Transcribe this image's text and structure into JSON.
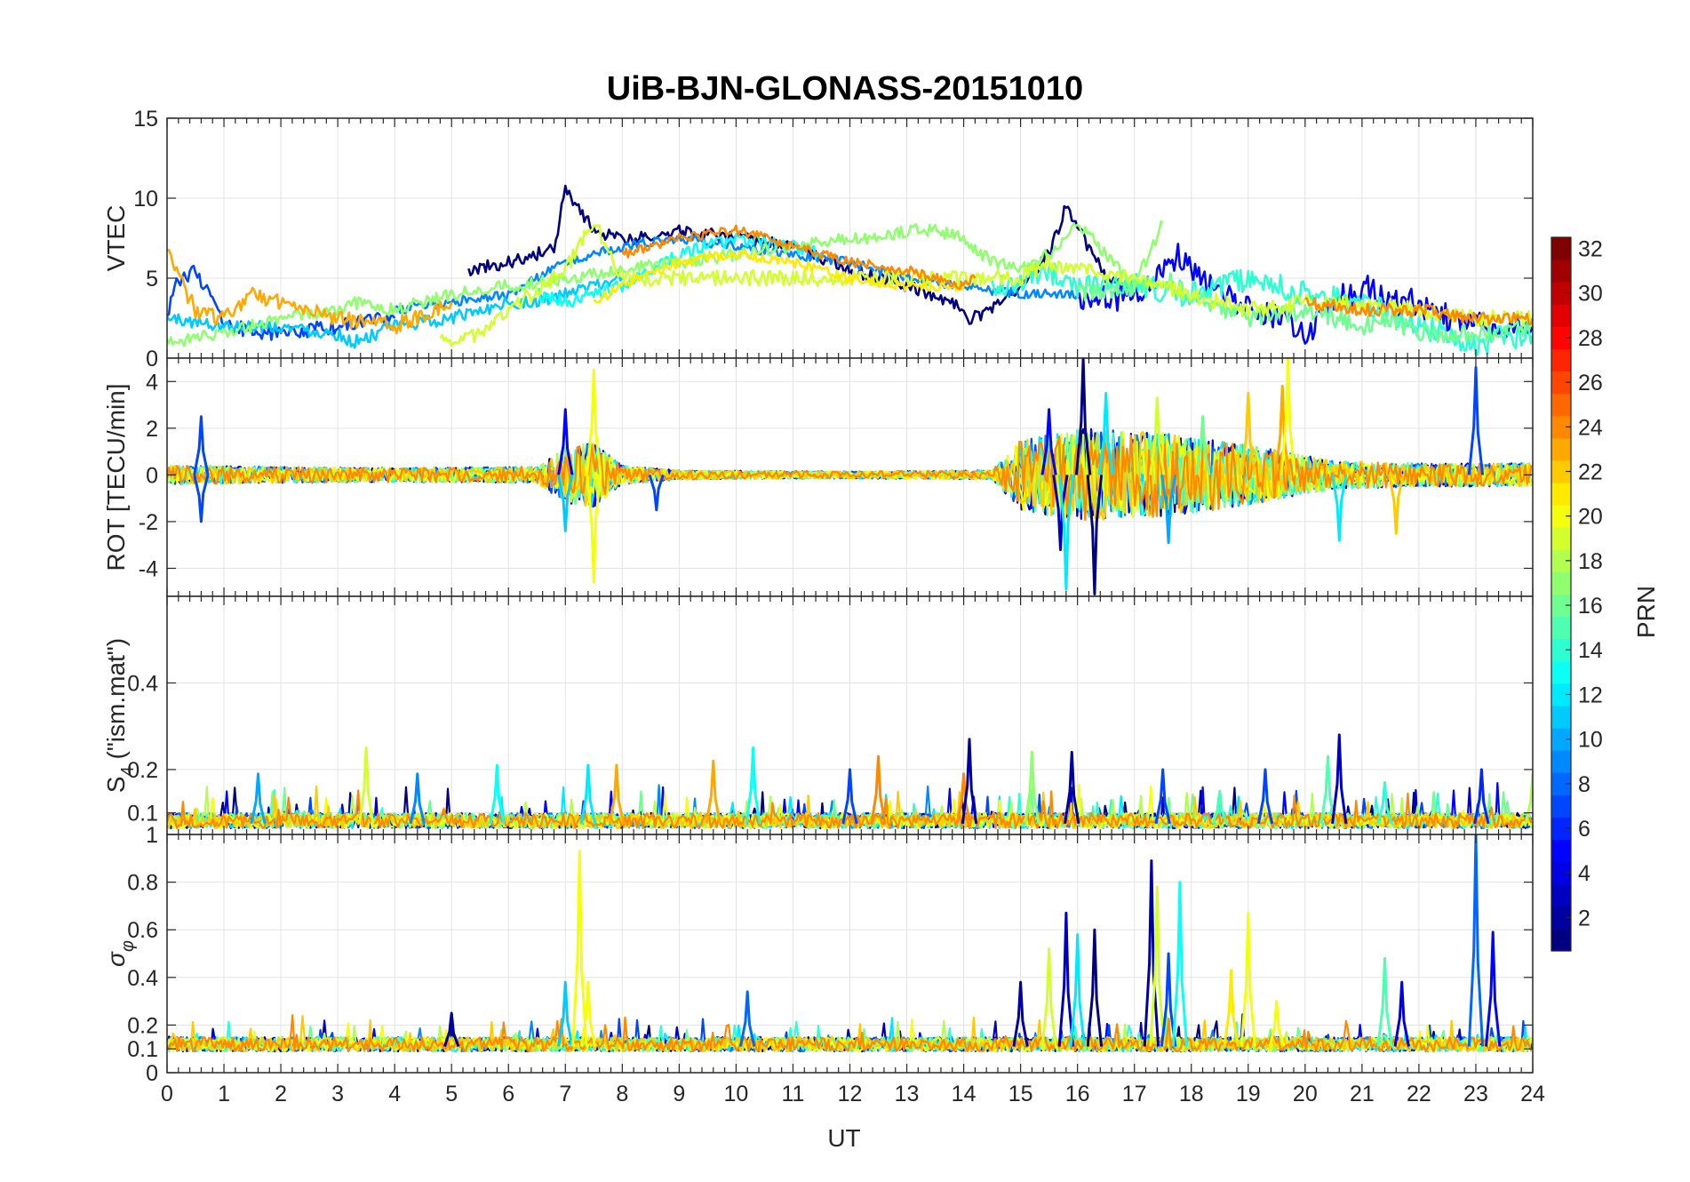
{
  "chart_data": {
    "type": "line",
    "title": "UiB-BJN-GLONASS-20151010",
    "xlabel": "UT",
    "xlim": [
      0,
      24
    ],
    "x_ticks": [
      "0",
      "1",
      "2",
      "3",
      "4",
      "5",
      "6",
      "7",
      "8",
      "9",
      "10",
      "11",
      "12",
      "13",
      "14",
      "15",
      "16",
      "17",
      "18",
      "19",
      "20",
      "21",
      "22",
      "23",
      "24"
    ],
    "grid": true,
    "colorbar": {
      "label": "PRN",
      "colormap": "jet",
      "range": [
        1,
        32
      ],
      "ticks": [
        "2",
        "4",
        "6",
        "8",
        "10",
        "12",
        "14",
        "16",
        "18",
        "20",
        "22",
        "24",
        "26",
        "28",
        "30",
        "32"
      ]
    },
    "panels": [
      {
        "id": "vtec",
        "ylabel": "VTEC",
        "ylim": [
          0,
          15
        ],
        "y_ticks": [
          0,
          5,
          10,
          15
        ],
        "y_tick_labels": [
          "0",
          "5",
          "10",
          "15"
        ],
        "series": [
          {
            "prn": 1,
            "x": [
              5.3,
              6.0,
              6.8,
              7.0,
              7.5,
              8.0,
              8.5,
              9.0,
              10.0,
              11.0,
              12.0,
              13.0,
              13.8,
              14.1,
              14.5,
              15.0,
              15.5,
              15.8,
              16.5,
              17.0
            ],
            "y": [
              5.5,
              6.0,
              6.8,
              10.5,
              8.0,
              7.5,
              7.5,
              8.0,
              7.5,
              7.0,
              5.5,
              4.5,
              3.5,
              2.5,
              3.0,
              4.5,
              6.5,
              9.5,
              5.0,
              4.5
            ],
            "noise": 0.4
          },
          {
            "prn": 5,
            "x": [
              16.0,
              17.0,
              17.8,
              18.5,
              19.0,
              19.5,
              20.0,
              20.5,
              21.0,
              21.5,
              22.0,
              22.5,
              23.0,
              24.0
            ],
            "y": [
              3.5,
              4.0,
              6.5,
              4.0,
              3.0,
              2.5,
              1.5,
              3.5,
              4.5,
              3.5,
              3.5,
              2.5,
              2.0,
              2.0
            ],
            "noise": 0.9
          },
          {
            "prn": 7,
            "x": [
              0.0,
              0.2,
              0.5,
              1.0,
              2.0,
              3.0,
              4.0
            ],
            "y": [
              2.5,
              5.0,
              5.5,
              2.0,
              1.5,
              2.0,
              2.5
            ],
            "noise": 0.5
          },
          {
            "prn": 9,
            "x": [
              4.0,
              5.0,
              6.0,
              7.0,
              8.0,
              9.0,
              10.0,
              11.0,
              12.0,
              13.0,
              14.0,
              15.0,
              16.0
            ],
            "y": [
              3.0,
              3.5,
              4.0,
              6.0,
              7.0,
              7.5,
              7.0,
              6.5,
              6.0,
              5.0,
              4.5,
              4.0,
              4.0
            ],
            "noise": 0.3
          },
          {
            "prn": 11,
            "x": [
              0.0,
              1.0,
              2.0,
              3.0,
              3.3,
              4.0,
              5.0,
              6.0,
              6.5,
              7.0,
              7.5,
              8.0
            ],
            "y": [
              2.5,
              2.0,
              2.0,
              1.5,
              1.0,
              2.0,
              2.5,
              3.5,
              3.5,
              4.0,
              4.5,
              5.0
            ],
            "noise": 0.4
          },
          {
            "prn": 13,
            "x": [
              6.5,
              7.0,
              7.5,
              8.0,
              8.5,
              9.0,
              10.0,
              11.0,
              11.5
            ],
            "y": [
              4.0,
              3.5,
              4.0,
              4.5,
              5.5,
              6.5,
              7.5,
              7.0,
              6.5
            ],
            "noise": 0.4
          },
          {
            "prn": 14,
            "x": [
              14.5,
              15.0,
              15.5,
              16.0,
              17.0,
              18.0,
              18.5,
              19.0,
              20.0,
              21.0,
              22.0,
              23.0,
              24.0
            ],
            "y": [
              4.5,
              5.0,
              5.5,
              4.5,
              4.5,
              4.0,
              4.5,
              5.0,
              4.0,
              3.5,
              2.0,
              1.0,
              1.5
            ],
            "noise": 0.8
          },
          {
            "prn": 16,
            "x": [
              16.0,
              17.0,
              17.5,
              18.0,
              19.0,
              20.0,
              21.0,
              21.5,
              22.0,
              23.0,
              24.0
            ],
            "y": [
              4.0,
              4.5,
              5.0,
              4.0,
              2.5,
              3.0,
              2.0,
              2.5,
              1.5,
              1.5,
              2.0
            ],
            "noise": 0.6
          },
          {
            "prn": 17,
            "x": [
              0.0,
              1.0,
              2.0,
              3.0,
              3.3,
              4.0,
              4.5,
              5.0,
              12.0,
              12.5,
              13.0,
              13.5,
              14.0,
              14.5,
              15.0,
              15.5,
              16.0,
              17.0,
              17.5
            ],
            "y": [
              1.0,
              1.5,
              2.5,
              3.0,
              3.5,
              3.0,
              3.5,
              4.0,
              7.5,
              7.5,
              8.0,
              8.0,
              7.5,
              6.0,
              5.5,
              6.5,
              8.5,
              4.5,
              8.5
            ],
            "noise": 0.4
          },
          {
            "prn": 19,
            "x": [
              4.8,
              5.5,
              6.0,
              7.0,
              7.5,
              8.0,
              15.0,
              15.5,
              16.0,
              17.0,
              18.0,
              19.0,
              20.0,
              21.0,
              22.0,
              23.0,
              24.0
            ],
            "y": [
              1.0,
              1.5,
              3.0,
              5.5,
              8.5,
              5.0,
              5.0,
              6.0,
              5.5,
              5.0,
              4.0,
              3.0,
              3.5,
              3.5,
              3.0,
              2.5,
              2.5
            ],
            "noise": 0.5
          },
          {
            "prn": 21,
            "x": [
              7.5,
              8.0,
              9.0,
              10.0,
              11.0,
              12.0,
              13.0,
              14.0
            ],
            "y": [
              3.5,
              4.5,
              6.0,
              6.5,
              6.0,
              5.0,
              4.5,
              4.5
            ],
            "noise": 0.3
          },
          {
            "prn": 23,
            "x": [
              0.0,
              0.5,
              1.0,
              1.5,
              2.0,
              3.0,
              4.0,
              5.0
            ],
            "y": [
              6.5,
              3.0,
              2.5,
              4.0,
              3.5,
              2.5,
              2.0,
              3.5
            ],
            "noise": 0.5
          },
          {
            "prn": 24,
            "x": [
              8.0,
              9.0,
              10.0,
              10.5,
              11.0,
              12.0,
              13.0,
              14.0,
              14.2
            ],
            "y": [
              6.5,
              7.5,
              8.0,
              7.5,
              7.0,
              6.0,
              5.5,
              4.5,
              5.0
            ],
            "noise": 0.3
          },
          {
            "prn": 24,
            "x": [
              20.0,
              21.0,
              22.0,
              23.0,
              24.0
            ],
            "y": [
              3.5,
              3.0,
              3.0,
              2.5,
              2.5
            ],
            "noise": 0.4
          }
        ]
      },
      {
        "id": "rot",
        "ylabel": "ROT [TECU/min]",
        "ylim": [
          -5.2,
          5.0
        ],
        "y_ticks": [
          -4,
          -2,
          0,
          2,
          4
        ],
        "y_tick_labels": [
          "-4",
          "-2",
          "0",
          "2",
          "4"
        ],
        "mean": 0.0,
        "activity": [
          {
            "x": 0,
            "a": 0.4
          },
          {
            "x": 4,
            "a": 0.3
          },
          {
            "x": 6.5,
            "a": 0.35
          },
          {
            "x": 7.0,
            "a": 1.2
          },
          {
            "x": 7.5,
            "a": 1.4
          },
          {
            "x": 8.0,
            "a": 0.4
          },
          {
            "x": 9,
            "a": 0.2
          },
          {
            "x": 12,
            "a": 0.15
          },
          {
            "x": 14.5,
            "a": 0.2
          },
          {
            "x": 15.0,
            "a": 1.5
          },
          {
            "x": 16.0,
            "a": 2.0
          },
          {
            "x": 17.5,
            "a": 1.8
          },
          {
            "x": 19,
            "a": 1.3
          },
          {
            "x": 20.5,
            "a": 0.6
          },
          {
            "x": 22,
            "a": 0.5
          },
          {
            "x": 24,
            "a": 0.5
          }
        ],
        "peaks": [
          {
            "x": 0.6,
            "y": 2.5,
            "prn": 7
          },
          {
            "x": 0.6,
            "y": -2.0,
            "prn": 7
          },
          {
            "x": 7.0,
            "y": 2.8,
            "prn": 5
          },
          {
            "x": 7.0,
            "y": -2.4,
            "prn": 11
          },
          {
            "x": 7.5,
            "y": 4.5,
            "prn": 20
          },
          {
            "x": 7.5,
            "y": -4.6,
            "prn": 20
          },
          {
            "x": 8.6,
            "y": -1.5,
            "prn": 7
          },
          {
            "x": 15.5,
            "y": 2.8,
            "prn": 5
          },
          {
            "x": 15.7,
            "y": -3.2,
            "prn": 3
          },
          {
            "x": 15.8,
            "y": -4.9,
            "prn": 12
          },
          {
            "x": 16.1,
            "y": 5.0,
            "prn": 1
          },
          {
            "x": 16.3,
            "y": -5.1,
            "prn": 1
          },
          {
            "x": 16.5,
            "y": 3.5,
            "prn": 12
          },
          {
            "x": 17.4,
            "y": 3.3,
            "prn": 19
          },
          {
            "x": 17.6,
            "y": -2.9,
            "prn": 10
          },
          {
            "x": 18.2,
            "y": 2.5,
            "prn": 16
          },
          {
            "x": 19.0,
            "y": 3.5,
            "prn": 22
          },
          {
            "x": 19.6,
            "y": 3.8,
            "prn": 23
          },
          {
            "x": 19.7,
            "y": 5.0,
            "prn": 20
          },
          {
            "x": 20.6,
            "y": -2.8,
            "prn": 12
          },
          {
            "x": 21.6,
            "y": -2.5,
            "prn": 22
          },
          {
            "x": 23.0,
            "y": 4.6,
            "prn": 7
          }
        ]
      },
      {
        "id": "s4",
        "ylabel_main": "S",
        "ylabel_sub": "4",
        "ylabel_rest": " (\"ism.mat\")",
        "ylim": [
          0.05,
          0.6
        ],
        "y_ticks": [
          0.1,
          0.2,
          0.4
        ],
        "y_tick_labels": [
          "0.1",
          "0.2",
          "0.4"
        ],
        "mean": 0.075,
        "peaks": [
          {
            "x": 1.6,
            "y": 0.19,
            "prn": 10
          },
          {
            "x": 3.5,
            "y": 0.25,
            "prn": 19
          },
          {
            "x": 4.4,
            "y": 0.19,
            "prn": 9
          },
          {
            "x": 5.8,
            "y": 0.21,
            "prn": 13
          },
          {
            "x": 7.4,
            "y": 0.21,
            "prn": 12
          },
          {
            "x": 7.9,
            "y": 0.21,
            "prn": 23
          },
          {
            "x": 9.6,
            "y": 0.22,
            "prn": 23
          },
          {
            "x": 10.3,
            "y": 0.25,
            "prn": 13
          },
          {
            "x": 12.5,
            "y": 0.23,
            "prn": 24
          },
          {
            "x": 12.0,
            "y": 0.2,
            "prn": 7
          },
          {
            "x": 14.0,
            "y": 0.19,
            "prn": 24
          },
          {
            "x": 14.1,
            "y": 0.27,
            "prn": 2
          },
          {
            "x": 15.2,
            "y": 0.24,
            "prn": 17
          },
          {
            "x": 15.9,
            "y": 0.24,
            "prn": 2
          },
          {
            "x": 17.5,
            "y": 0.2,
            "prn": 7
          },
          {
            "x": 18.5,
            "y": 0.15,
            "prn": 15
          },
          {
            "x": 19.3,
            "y": 0.2,
            "prn": 7
          },
          {
            "x": 20.4,
            "y": 0.23,
            "prn": 15
          },
          {
            "x": 20.6,
            "y": 0.28,
            "prn": 3
          },
          {
            "x": 21.4,
            "y": 0.17,
            "prn": 14
          },
          {
            "x": 23.1,
            "y": 0.2,
            "prn": 6
          },
          {
            "x": 24.0,
            "y": 0.19,
            "prn": 18
          }
        ]
      },
      {
        "id": "sigma_phi",
        "ylabel_main": "σ",
        "ylabel_sub": "φ",
        "ylim": [
          0,
          1
        ],
        "y_ticks": [
          0,
          0.1,
          0.2,
          0.4,
          0.6,
          0.8,
          1
        ],
        "y_tick_labels": [
          "0",
          "0.1",
          "0.2",
          "0.4",
          "0.6",
          "0.8",
          "1"
        ],
        "mean": 0.11,
        "peaks": [
          {
            "x": 5.0,
            "y": 0.25,
            "prn": 2
          },
          {
            "x": 7.0,
            "y": 0.38,
            "prn": 11
          },
          {
            "x": 7.25,
            "y": 0.93,
            "prn": 20
          },
          {
            "x": 7.4,
            "y": 0.38,
            "prn": 20
          },
          {
            "x": 10.2,
            "y": 0.34,
            "prn": 8
          },
          {
            "x": 15.0,
            "y": 0.38,
            "prn": 2
          },
          {
            "x": 15.5,
            "y": 0.52,
            "prn": 19
          },
          {
            "x": 15.8,
            "y": 0.67,
            "prn": 3
          },
          {
            "x": 16.0,
            "y": 0.58,
            "prn": 12
          },
          {
            "x": 16.3,
            "y": 0.6,
            "prn": 1
          },
          {
            "x": 17.3,
            "y": 0.89,
            "prn": 2
          },
          {
            "x": 17.4,
            "y": 0.78,
            "prn": 19
          },
          {
            "x": 17.6,
            "y": 0.5,
            "prn": 7
          },
          {
            "x": 17.8,
            "y": 0.8,
            "prn": 13
          },
          {
            "x": 18.7,
            "y": 0.43,
            "prn": 21
          },
          {
            "x": 19.0,
            "y": 0.67,
            "prn": 20
          },
          {
            "x": 19.5,
            "y": 0.3,
            "prn": 20
          },
          {
            "x": 21.4,
            "y": 0.48,
            "prn": 15
          },
          {
            "x": 21.7,
            "y": 0.38,
            "prn": 4
          },
          {
            "x": 23.0,
            "y": 1.0,
            "prn": 8
          },
          {
            "x": 23.3,
            "y": 0.59,
            "prn": 5
          }
        ]
      }
    ]
  }
}
